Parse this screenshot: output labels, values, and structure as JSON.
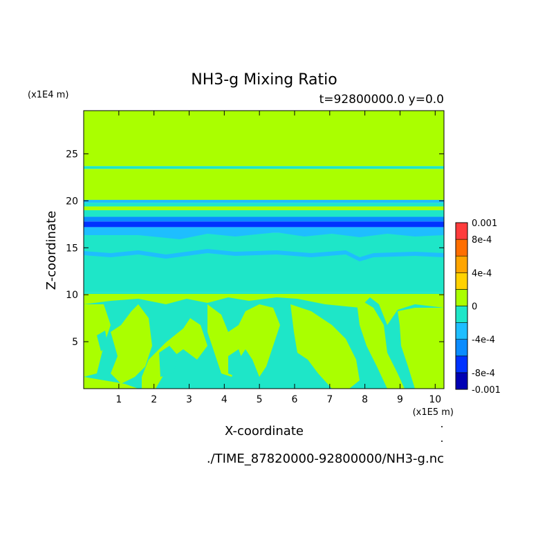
{
  "chart_data": {
    "type": "heatmap",
    "title": "NH3-g Mixing Ratio",
    "subtitle": "t=92800000.0 y=0.0",
    "xlabel": "X-coordinate",
    "ylabel": "Z-coordinate",
    "x_unit": "(x1E5 m)",
    "y_unit": "(x1E4 m)",
    "footer": "./TIME_87820000-92800000/NH3-g.nc",
    "xlim": [
      0,
      10.25
    ],
    "ylim": [
      0,
      29.6
    ],
    "x_ticks": [
      1,
      2,
      3,
      4,
      5,
      6,
      7,
      8,
      9,
      10
    ],
    "y_ticks": [
      5,
      10,
      15,
      20,
      25
    ],
    "colorbar": {
      "labels": [
        "0.001",
        "8e-4",
        "4e-4",
        "0",
        "-4e-4",
        "-8e-4",
        "-0.001"
      ],
      "label_values": [
        0.001,
        0.0008,
        0.0004,
        0,
        -0.0004,
        -0.0008,
        -0.001
      ],
      "levels": [
        -0.001,
        -0.0008,
        -0.0006,
        -0.0004,
        -0.0002,
        0,
        0.0002,
        0.0004,
        0.0006,
        0.0008,
        0.001
      ],
      "colors": [
        "#0000b4",
        "#0032ff",
        "#0a8cff",
        "#1ebeff",
        "#1ee6c8",
        "#aaff00",
        "#ffd200",
        "#ffa500",
        "#ff6e00",
        "#ff3c3c"
      ]
    },
    "colors": {
      "positive_small": "#aaff00",
      "negative_small": "#1ee6c8",
      "negative_mid": "#1ebeff",
      "negative_large": "#0a8cff",
      "negative_max": "#0032ff"
    },
    "bands": [
      {
        "z": [
          0,
          10.3
        ],
        "color": "#1ee6c8"
      },
      {
        "z": [
          10.3,
          16.6
        ],
        "color": "#1ee6c8"
      },
      {
        "z": [
          16.6,
          17.2
        ],
        "color": "#1ebeff"
      },
      {
        "z": [
          17.2,
          17.8
        ],
        "color": "#0032ff"
      },
      {
        "z": [
          17.8,
          18.3
        ],
        "color": "#0a8cff"
      },
      {
        "z": [
          18.3,
          19.0
        ],
        "color": "#1ee6c8"
      },
      {
        "z": [
          19.0,
          19.4
        ],
        "color": "#aaff00"
      },
      {
        "z": [
          19.4,
          19.8
        ],
        "color": "#1ee6c8"
      },
      {
        "z": [
          19.8,
          20.1
        ],
        "color": "#1ebeff"
      },
      {
        "z": [
          20.1,
          23.4
        ],
        "color": "#aaff00"
      },
      {
        "z": [
          23.4,
          23.7
        ],
        "color": "#1ee6c8"
      },
      {
        "z": [
          23.7,
          29.6
        ],
        "color": "#aaff00"
      }
    ]
  }
}
